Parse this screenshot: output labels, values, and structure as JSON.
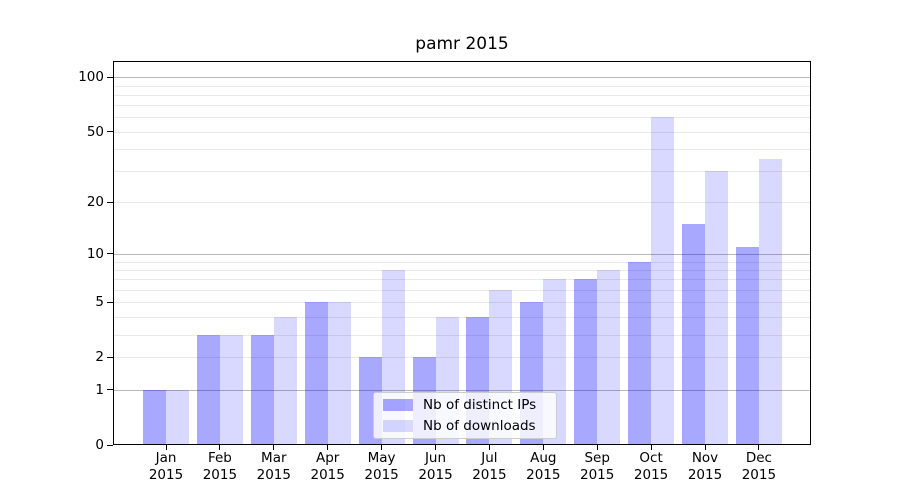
{
  "chart_data": {
    "type": "bar",
    "title": "pamr 2015",
    "categories": [
      "Jan 2015",
      "Feb 2015",
      "Mar 2015",
      "Apr 2015",
      "May 2015",
      "Jun 2015",
      "Jul 2015",
      "Aug 2015",
      "Sep 2015",
      "Oct 2015",
      "Nov 2015",
      "Dec 2015"
    ],
    "series": [
      {
        "name": "Nb of distinct IPs",
        "color": "#0000ff",
        "alpha": 0.34,
        "values": [
          1,
          3,
          3,
          5,
          2,
          2,
          4,
          5,
          7,
          9,
          15,
          11
        ]
      },
      {
        "name": "Nb of downloads",
        "color": "#0000ff",
        "alpha": 0.15,
        "values": [
          1,
          3,
          4,
          5,
          8,
          4,
          6,
          7,
          8,
          60,
          30,
          35
        ]
      }
    ],
    "xlabel": "",
    "ylabel": "",
    "yscale": "log1p",
    "ylim": [
      0,
      122
    ],
    "yticks": [
      0,
      1,
      2,
      5,
      10,
      20,
      50,
      100
    ],
    "major_gridlines": [
      1,
      10,
      100
    ],
    "minor_gridlines": [
      2,
      3,
      4,
      5,
      6,
      7,
      8,
      9,
      20,
      30,
      40,
      50,
      60,
      70,
      80,
      90
    ],
    "grid": "both",
    "legend_position": "lower-center",
    "colors": {
      "major_grid": "#b8b8b8",
      "minor_grid": "#e9e9e9",
      "spine": "#000000",
      "background": "#ffffff"
    }
  }
}
